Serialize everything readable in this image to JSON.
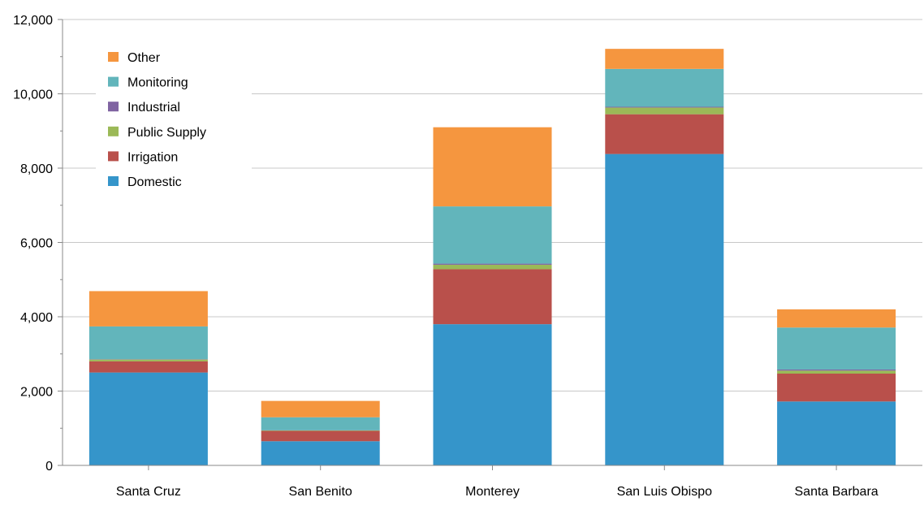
{
  "chart_data": {
    "type": "bar",
    "stacked": true,
    "title": "",
    "xlabel": "",
    "ylabel": "",
    "ylim": [
      0,
      12000
    ],
    "yticks": [
      0,
      2000,
      4000,
      6000,
      8000,
      10000,
      12000
    ],
    "ytick_labels": [
      "0",
      "2,000",
      "4,000",
      "6,000",
      "8,000",
      "10,000",
      "12,000"
    ],
    "grid": true,
    "legend_position": "top-left",
    "categories": [
      "Santa Cruz",
      "San Benito",
      "Monterey",
      "San Luis Obispo",
      "Santa Barbara"
    ],
    "series": [
      {
        "name": "Domestic",
        "color": "#3595ca",
        "values": [
          2500,
          650,
          3800,
          8380,
          1720
        ]
      },
      {
        "name": "Irrigation",
        "color": "#b9504b",
        "values": [
          300,
          280,
          1480,
          1070,
          750
        ]
      },
      {
        "name": "Public Supply",
        "color": "#9bb957",
        "values": [
          50,
          10,
          120,
          180,
          80
        ]
      },
      {
        "name": "Industrial",
        "color": "#8064a2",
        "values": [
          10,
          5,
          30,
          20,
          30
        ]
      },
      {
        "name": "Monitoring",
        "color": "#62b5bb",
        "values": [
          880,
          350,
          1540,
          1020,
          1130
        ]
      },
      {
        "name": "Other",
        "color": "#f5963f",
        "values": [
          950,
          440,
          2130,
          540,
          490
        ]
      }
    ],
    "legend_order": [
      "Other",
      "Monitoring",
      "Industrial",
      "Public Supply",
      "Irrigation",
      "Domestic"
    ]
  }
}
